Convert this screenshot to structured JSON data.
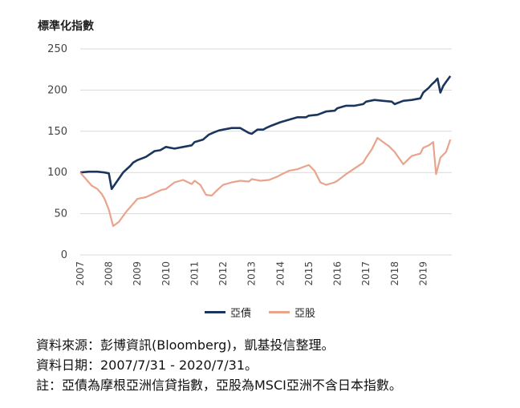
{
  "chart_data": {
    "type": "line",
    "ylabel": "標準化指數",
    "ylim": [
      0,
      250
    ],
    "yticks": [
      "0",
      "50",
      "100",
      "150",
      "200",
      "250"
    ],
    "xticks": [
      "2007",
      "2008",
      "2009",
      "2010",
      "2011",
      "2012",
      "2013",
      "2014",
      "2015",
      "2016",
      "2017",
      "2018",
      "2019"
    ],
    "xrange": [
      2007.0,
      2020.0
    ],
    "grid": true,
    "legend_position": "bottom",
    "series": [
      {
        "name": "亞債",
        "color": "#1b365d",
        "x": [
          2007.0,
          2007.3,
          2007.6,
          2007.85,
          2008.0,
          2008.1,
          2008.3,
          2008.5,
          2008.75,
          2008.85,
          2009.0,
          2009.3,
          2009.6,
          2009.8,
          2010.0,
          2010.3,
          2010.6,
          2010.9,
          2011.0,
          2011.3,
          2011.5,
          2011.7,
          2011.85,
          2012.0,
          2012.3,
          2012.6,
          2012.9,
          2013.0,
          2013.2,
          2013.4,
          2013.5,
          2013.7,
          2014.0,
          2014.3,
          2014.6,
          2014.9,
          2015.0,
          2015.3,
          2015.6,
          2015.9,
          2016.0,
          2016.3,
          2016.6,
          2016.9,
          2017.0,
          2017.3,
          2017.6,
          2017.9,
          2018.0,
          2018.3,
          2018.6,
          2018.9,
          2019.0,
          2019.2,
          2019.3,
          2019.4,
          2019.5,
          2019.6,
          2019.7,
          2019.8,
          2019.95
        ],
        "values": [
          100,
          101,
          101,
          100,
          99,
          80,
          90,
          100,
          108,
          112,
          115,
          119,
          126,
          127,
          131,
          129,
          131,
          133,
          137,
          140,
          146,
          149,
          151,
          152,
          154,
          154,
          148,
          147,
          152,
          152,
          154,
          157,
          161,
          164,
          167,
          167,
          169,
          170,
          174,
          175,
          178,
          181,
          181,
          183,
          186,
          188,
          187,
          186,
          183,
          187,
          188,
          190,
          197,
          203,
          207,
          210,
          214,
          197,
          205,
          210,
          217
        ]
      },
      {
        "name": "亞股",
        "color": "#e8a48c",
        "x": [
          2007.0,
          2007.2,
          2007.4,
          2007.6,
          2007.75,
          2007.85,
          2008.0,
          2008.15,
          2008.35,
          2008.6,
          2008.85,
          2009.0,
          2009.3,
          2009.6,
          2009.85,
          2010.0,
          2010.3,
          2010.6,
          2010.9,
          2011.0,
          2011.2,
          2011.4,
          2011.6,
          2011.8,
          2012.0,
          2012.3,
          2012.6,
          2012.9,
          2013.0,
          2013.3,
          2013.6,
          2013.9,
          2014.0,
          2014.3,
          2014.6,
          2014.9,
          2015.0,
          2015.2,
          2015.4,
          2015.6,
          2015.9,
          2016.0,
          2016.3,
          2016.6,
          2016.9,
          2017.0,
          2017.2,
          2017.4,
          2017.6,
          2017.8,
          2018.0,
          2018.3,
          2018.6,
          2018.9,
          2019.0,
          2019.2,
          2019.35,
          2019.45,
          2019.6,
          2019.8,
          2019.95
        ],
        "values": [
          100,
          92,
          84,
          80,
          74,
          68,
          55,
          35,
          40,
          52,
          62,
          68,
          70,
          75,
          79,
          80,
          88,
          91,
          86,
          90,
          85,
          73,
          72,
          79,
          85,
          88,
          90,
          89,
          92,
          90,
          91,
          95,
          97,
          102,
          104,
          108,
          109,
          102,
          88,
          85,
          88,
          90,
          98,
          105,
          112,
          118,
          128,
          142,
          137,
          132,
          125,
          110,
          120,
          123,
          130,
          133,
          137,
          98,
          118,
          125,
          140
        ]
      }
    ]
  },
  "notes": {
    "line1": "資料來源：彭博資訊(Bloomberg)，凱基投信整理。",
    "line2": "資料日期：2007/7/31 - 2020/7/31。",
    "line3": "註：亞債為摩根亞洲信貸指數，亞股為MSCI亞洲不含日本指數。"
  }
}
